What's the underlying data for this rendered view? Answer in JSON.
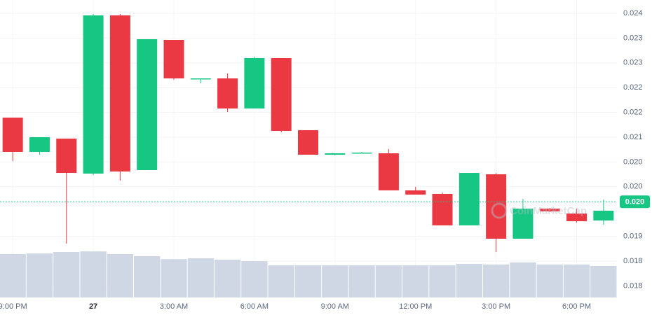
{
  "chart_data": {
    "type": "candlestick",
    "categories": [
      "9:00 PM",
      null,
      null,
      "27",
      null,
      null,
      "3:00 AM",
      null,
      null,
      "6:00 AM",
      null,
      null,
      "9:00 AM",
      null,
      null,
      "12:00 PM",
      null,
      null,
      "3:00 PM",
      null,
      null,
      "6:00 PM",
      null
    ],
    "open": [
      0.021403,
      0.020628,
      0.020928,
      0.020137,
      0.023713,
      0.020216,
      0.023159,
      0.022273,
      0.022289,
      0.021609,
      0.022748,
      0.021118,
      0.020564,
      0.020596,
      0.020596,
      0.019758,
      0.019679,
      0.018967,
      0.020122,
      0.018666,
      0.019346,
      0.019236,
      0.019077
    ],
    "high": [
      0.021403,
      0.02096,
      0.020928,
      0.023744,
      0.023744,
      0.023175,
      0.023159,
      0.022289,
      0.0224,
      0.022779,
      0.022748,
      0.021118,
      0.020596,
      0.020628,
      0.020691,
      0.019837,
      0.01971,
      0.020153,
      0.020153,
      0.019568,
      0.019362,
      0.019346,
      0.019552
    ],
    "low": [
      0.020422,
      0.020564,
      0.018555,
      0.020106,
      0.019979,
      0.020216,
      0.022257,
      0.022178,
      0.021529,
      0.021609,
      0.021071,
      0.020564,
      0.020549,
      0.020596,
      0.019758,
      0.019663,
      0.018967,
      0.018967,
      0.018365,
      0.018666,
      0.019267,
      0.01903,
      0.018982
    ],
    "close": [
      0.020628,
      0.02096,
      0.020153,
      0.023713,
      0.020185,
      0.023175,
      0.022289,
      0.022289,
      0.021609,
      0.022748,
      0.021102,
      0.020564,
      0.020596,
      0.020612,
      0.019758,
      0.019663,
      0.018967,
      0.020153,
      0.018666,
      0.019346,
      0.019283,
      0.019061,
      0.019299
    ],
    "volume": [
      14.6,
      14.8,
      15.3,
      15.5,
      14.6,
      13.9,
      12.9,
      13.2,
      12.7,
      12.2,
      10.8,
      10.8,
      10.8,
      10.8,
      10.8,
      10.8,
      10.8,
      11.3,
      11.1,
      11.8,
      11.1,
      11.1,
      10.6
    ],
    "volume_ylim": [
      0,
      100
    ],
    "up_color": "#16c784",
    "down_color": "#ea3943",
    "volume_color": "#cfd6e4",
    "ylim": [
      0.017337,
      0.024061
    ],
    "yticks": [
      {
        "value": 0.02376,
        "label": "0.024"
      },
      {
        "value": 0.0232,
        "label": "0.023"
      },
      {
        "value": 0.02264,
        "label": "0.023"
      },
      {
        "value": 0.02208,
        "label": "0.022"
      },
      {
        "value": 0.02152,
        "label": "0.022"
      },
      {
        "value": 0.02096,
        "label": "0.021"
      },
      {
        "value": 0.0204,
        "label": "0.020"
      },
      {
        "value": 0.01984,
        "label": "0.020"
      },
      {
        "value": 0.01872,
        "label": "0.019"
      },
      {
        "value": 0.01816,
        "label": "0.018"
      },
      {
        "value": 0.0176,
        "label": "0.018"
      }
    ],
    "current_price": {
      "value": 0.0195,
      "label": "0.020"
    },
    "watermark": "CoinMarketCap",
    "grid": true
  }
}
